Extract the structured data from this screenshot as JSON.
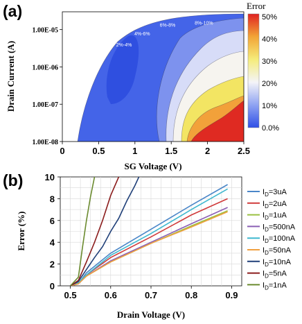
{
  "panels": {
    "a": {
      "label": "(a)",
      "xlabel": "SG Voltage (V)",
      "ylabel": "Drain Current (A)",
      "x_ticks": [
        "0",
        "0.5",
        "1",
        "1.5",
        "2",
        "2.5"
      ],
      "y_ticks": [
        "1.00E-05",
        "1.00E-06",
        "1.00E-07",
        "1.00E-08"
      ],
      "colorbar": {
        "title": "Error",
        "ticks": [
          "50%",
          "40%",
          "30%",
          "20%",
          "10%",
          "0.0%"
        ]
      },
      "annotations": [
        "2%-4%",
        "4%-6%",
        "6%-8%",
        "8%-10%"
      ]
    },
    "b": {
      "label": "(b)",
      "xlabel": "Drain Voltage (V)",
      "ylabel": "Error (%)",
      "x_ticks": [
        "0.5",
        "0.6",
        "0.7",
        "0.8",
        "0.9"
      ],
      "y_ticks": [
        "0",
        "2",
        "4",
        "6",
        "8",
        "10"
      ]
    }
  },
  "chart_data": [
    {
      "type": "heatmap",
      "xlabel": "SG Voltage (V)",
      "ylabel": "Drain Current (A)",
      "xlim": [
        0,
        2.5
      ],
      "y_scale": "log",
      "ylim": [
        1e-08,
        3e-05
      ],
      "colorbar_title": "Error",
      "colorbar_range": [
        0,
        50
      ],
      "colorbar_unit": "%",
      "annotations": [
        {
          "text": "2%-4%",
          "x": 0.85,
          "y": 3.5e-06
        },
        {
          "text": "4%-6%",
          "x": 1.1,
          "y": 7e-06
        },
        {
          "text": "6%-8%",
          "x": 1.45,
          "y": 1.2e-05
        },
        {
          "text": "8%-10%",
          "x": 1.95,
          "y": 1.35e-05
        }
      ],
      "colors": {
        "low": "#3050e0",
        "mid": "#ffffff",
        "high": "#e02020"
      }
    },
    {
      "type": "line",
      "xlabel": "Drain Voltage (V)",
      "ylabel": "Error (%)",
      "xlim": [
        0.475,
        0.925
      ],
      "ylim": [
        0,
        10
      ],
      "legend_position": "right",
      "series": [
        {
          "name": "ID=3uA",
          "color": "#4a86c8",
          "x": [
            0.5,
            0.52,
            0.54,
            0.6,
            0.7,
            0.8,
            0.89
          ],
          "y": [
            0,
            0.2,
            1.2,
            3.0,
            5.2,
            7.4,
            9.3
          ]
        },
        {
          "name": "ID=2uA",
          "color": "#d03a3a",
          "x": [
            0.5,
            0.52,
            0.54,
            0.6,
            0.7,
            0.8,
            0.89
          ],
          "y": [
            0,
            0.2,
            1.0,
            2.6,
            4.5,
            6.5,
            8.0
          ]
        },
        {
          "name": "ID=1uA",
          "color": "#9ac040",
          "x": [
            0.5,
            0.52,
            0.54,
            0.6,
            0.7,
            0.8,
            0.89
          ],
          "y": [
            0,
            0.2,
            0.9,
            2.2,
            3.9,
            5.5,
            6.9
          ]
        },
        {
          "name": "ID=500nA",
          "color": "#8a5fb5",
          "x": [
            0.5,
            0.52,
            0.54,
            0.6,
            0.7,
            0.8,
            0.89
          ],
          "y": [
            0,
            0.2,
            0.9,
            2.3,
            4.0,
            5.7,
            7.2
          ]
        },
        {
          "name": "ID=100nA",
          "color": "#3fb8cf",
          "x": [
            0.5,
            0.52,
            0.54,
            0.6,
            0.7,
            0.8,
            0.89
          ],
          "y": [
            0,
            0.3,
            1.0,
            2.8,
            4.8,
            7.0,
            8.9
          ]
        },
        {
          "name": "ID=50nA",
          "color": "#f0a040",
          "x": [
            0.5,
            0.52,
            0.54,
            0.6,
            0.7,
            0.8,
            0.89
          ],
          "y": [
            0,
            0.2,
            0.9,
            2.2,
            3.9,
            5.4,
            6.8
          ]
        },
        {
          "name": "ID=10nA",
          "color": "#1f3f78",
          "x": [
            0.5,
            0.52,
            0.54,
            0.56,
            0.58,
            0.6,
            0.62,
            0.64,
            0.66,
            0.67
          ],
          "y": [
            0,
            0.4,
            1.5,
            2.6,
            3.6,
            5.0,
            6.2,
            7.8,
            9.2,
            10
          ]
        },
        {
          "name": "ID=5nA",
          "color": "#8b1c1c",
          "x": [
            0.5,
            0.52,
            0.54,
            0.56,
            0.58,
            0.6,
            0.62
          ],
          "y": [
            0,
            0.5,
            2.2,
            4.0,
            6.0,
            8.3,
            10
          ]
        },
        {
          "name": "ID=1nA",
          "color": "#6a8a2e",
          "x": [
            0.5,
            0.52,
            0.53,
            0.54,
            0.55,
            0.56
          ],
          "y": [
            0,
            0.8,
            3.5,
            6.0,
            8.2,
            10
          ]
        }
      ]
    }
  ]
}
